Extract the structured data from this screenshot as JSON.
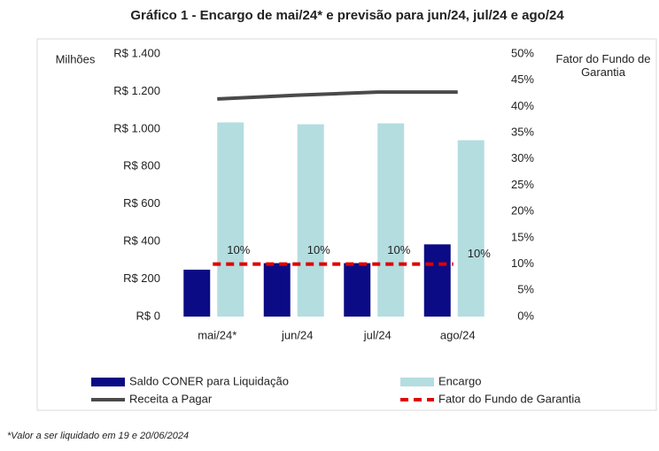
{
  "chart_data": {
    "type": "bar-line",
    "title": "Gráfico 1 - Encargo de mai/24* e previsão para jun/24, jul/24 e ago/24",
    "y_label": "Milhões",
    "y2_label": "Fator do Fundo de Garantia",
    "footnote": "*Valor a ser liquidado em 19 e 20/06/2024",
    "categories": [
      "mai/24*",
      "jun/24",
      "jul/24",
      "ago/24"
    ],
    "series": [
      {
        "name": "Saldo CONER para Liquidação",
        "kind": "bar",
        "color": "#0b0b85",
        "values": [
          250,
          285,
          285,
          385
        ]
      },
      {
        "name": "Encargo",
        "kind": "bar",
        "color": "#b4dde0",
        "values": [
          1035,
          1025,
          1030,
          940
        ]
      },
      {
        "name": "Receita a Pagar",
        "kind": "line",
        "color": "#4a4a4a",
        "values": [
          1160,
          1180,
          1197,
          1197
        ]
      },
      {
        "name": "Fator do Fundo de Garantia",
        "kind": "dashed-line",
        "axis": "y2",
        "color": "#e00000",
        "values": [
          10,
          10,
          10,
          10
        ],
        "value_labels": [
          "10%",
          "10%",
          "10%",
          "10%"
        ]
      }
    ],
    "ylim": [
      0,
      1400
    ],
    "yticks": [
      {
        "value": 0,
        "label": "R$ 0"
      },
      {
        "value": 200,
        "label": "R$ 200"
      },
      {
        "value": 400,
        "label": "R$ 400"
      },
      {
        "value": 600,
        "label": "R$ 600"
      },
      {
        "value": 800,
        "label": "R$ 800"
      },
      {
        "value": 1000,
        "label": "R$ 1.000"
      },
      {
        "value": 1200,
        "label": "R$ 1.200"
      },
      {
        "value": 1400,
        "label": "R$ 1.400"
      }
    ],
    "y2lim": [
      0,
      50
    ],
    "y2ticks": [
      {
        "value": 0,
        "label": "0%"
      },
      {
        "value": 5,
        "label": "5%"
      },
      {
        "value": 10,
        "label": "10%"
      },
      {
        "value": 15,
        "label": "15%"
      },
      {
        "value": 20,
        "label": "20%"
      },
      {
        "value": 25,
        "label": "25%"
      },
      {
        "value": 30,
        "label": "30%"
      },
      {
        "value": 35,
        "label": "35%"
      },
      {
        "value": 40,
        "label": "40%"
      },
      {
        "value": 45,
        "label": "45%"
      },
      {
        "value": 50,
        "label": "50%"
      }
    ]
  }
}
